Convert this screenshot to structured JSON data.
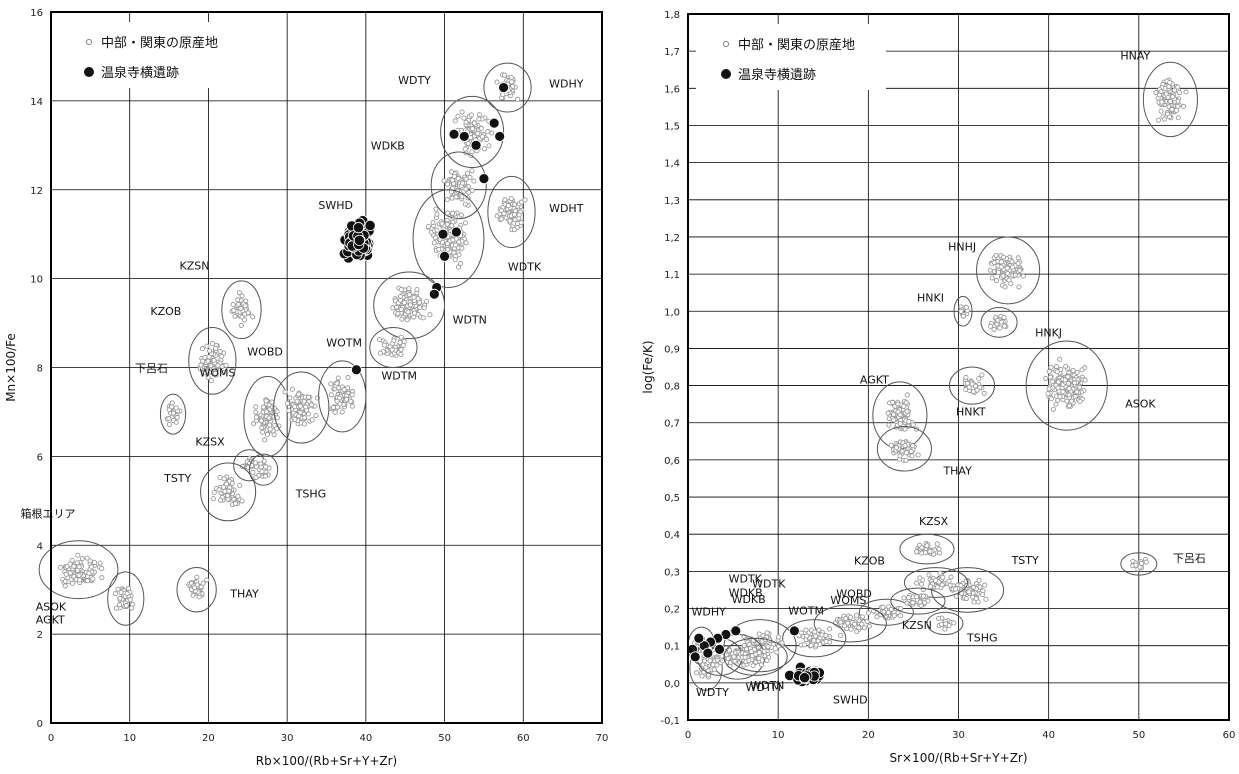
{
  "chart_data": [
    {
      "type": "scatter",
      "xlabel": "Rb×100/(Rb+Sr+Y+Zr)",
      "ylabel": "Mn×100/Fe",
      "xlim": [
        0,
        70
      ],
      "ylim": [
        0,
        16
      ],
      "xticks": [
        "0",
        "10",
        "20",
        "30",
        "40",
        "50",
        "60",
        "70"
      ],
      "yticks": [
        "0",
        "2",
        "4",
        "6",
        "8",
        "10",
        "12",
        "14",
        "16"
      ],
      "grid": true,
      "legend": {
        "position": "top-left",
        "entries": [
          "中部・関東の原産地",
          "温泉寺横遺跡"
        ]
      },
      "source_groups": [
        {
          "name": "WDHY",
          "cx": 58,
          "cy": 14.3,
          "rx": 3.0,
          "ry": 0.55
        },
        {
          "name": "WDTY",
          "cx": 53.5,
          "cy": 13.3,
          "rx": 4.0,
          "ry": 0.8
        },
        {
          "name": "WDKB",
          "cx": 51.8,
          "cy": 12.1,
          "rx": 3.5,
          "ry": 0.75
        },
        {
          "name": "WDHT",
          "cx": 58.5,
          "cy": 11.5,
          "rx": 3.0,
          "ry": 0.8
        },
        {
          "name": "WDTK",
          "cx": 50.5,
          "cy": 10.9,
          "rx": 4.5,
          "ry": 1.1
        },
        {
          "name": "WDTN",
          "cx": 45.5,
          "cy": 9.4,
          "rx": 4.5,
          "ry": 0.75
        },
        {
          "name": "WDTM",
          "cx": 43.5,
          "cy": 8.45,
          "rx": 3.0,
          "ry": 0.45
        },
        {
          "name": "KZSN",
          "cx": 24.2,
          "cy": 9.3,
          "rx": 2.5,
          "ry": 0.65
        },
        {
          "name": "KZOB",
          "cx": 20.5,
          "cy": 8.15,
          "rx": 3.0,
          "ry": 0.75
        },
        {
          "name": "WOMS",
          "cx": 27.5,
          "cy": 6.9,
          "rx": 3.0,
          "ry": 0.9
        },
        {
          "name": "WOBD",
          "cx": 31.8,
          "cy": 7.1,
          "rx": 3.5,
          "ry": 0.8
        },
        {
          "name": "WOTM",
          "cx": 37.0,
          "cy": 7.35,
          "rx": 3.0,
          "ry": 0.8
        },
        {
          "name": "下呂石",
          "cx": 15.5,
          "cy": 6.95,
          "rx": 1.6,
          "ry": 0.45
        },
        {
          "name": "KZSX",
          "cx": 25.2,
          "cy": 5.8,
          "rx": 2.0,
          "ry": 0.35
        },
        {
          "name": "TSHG",
          "cx": 27.0,
          "cy": 5.7,
          "rx": 1.8,
          "ry": 0.35
        },
        {
          "name": "TSTY",
          "cx": 22.5,
          "cy": 5.2,
          "rx": 3.5,
          "ry": 0.65
        },
        {
          "name": "箱根エリア",
          "cx": 3.5,
          "cy": 3.45,
          "rx": 5.0,
          "ry": 0.65
        },
        {
          "name": "ASOK AGKT",
          "cx": 9.5,
          "cy": 2.8,
          "rx": 2.3,
          "ry": 0.6
        },
        {
          "name": "THAY",
          "cx": 18.5,
          "cy": 3.0,
          "rx": 2.5,
          "ry": 0.5
        }
      ],
      "site_points": [
        {
          "x": 57.5,
          "y": 14.3
        },
        {
          "x": 56.3,
          "y": 13.5
        },
        {
          "x": 57.0,
          "y": 13.2
        },
        {
          "x": 51.2,
          "y": 13.25
        },
        {
          "x": 52.5,
          "y": 13.2
        },
        {
          "x": 54.0,
          "y": 13.0
        },
        {
          "x": 55.0,
          "y": 12.25
        },
        {
          "x": 51.5,
          "y": 11.05
        },
        {
          "x": 49.8,
          "y": 11.0
        },
        {
          "x": 50.0,
          "y": 10.5
        },
        {
          "x": 49.0,
          "y": 9.8
        },
        {
          "x": 48.7,
          "y": 9.65
        },
        {
          "x": 38.8,
          "y": 7.95
        }
      ],
      "site_cluster": {
        "name": "SWHD",
        "cx": 38.8,
        "cy": 10.85,
        "rx": 2.8,
        "ry": 0.7
      }
    },
    {
      "type": "scatter",
      "xlabel": "Sr×100/(Rb+Sr+Y+Zr)",
      "ylabel": "log(Fe/K)",
      "xlim": [
        0,
        60
      ],
      "ylim": [
        -0.1,
        1.8
      ],
      "xticks": [
        "0",
        "10",
        "20",
        "30",
        "40",
        "50",
        "60"
      ],
      "yticks": [
        "-0,1",
        "0,0",
        "0,1",
        "0,2",
        "0,3",
        "0,4",
        "0,5",
        "0,6",
        "0,7",
        "0,8",
        "0,9",
        "1,0",
        "1,1",
        "1,2",
        "1,3",
        "1,4",
        "1,5",
        "1,6",
        "1,7",
        "1,8"
      ],
      "grid": true,
      "legend": {
        "position": "top-left",
        "entries": [
          "中部・関東の原産地",
          "温泉寺横遺跡"
        ]
      },
      "source_groups": [
        {
          "name": "HNAY",
          "cx": 53.5,
          "cy": 1.57,
          "rx": 3.0,
          "ry": 0.1
        },
        {
          "name": "HNHJ",
          "cx": 35.5,
          "cy": 1.11,
          "rx": 3.5,
          "ry": 0.09
        },
        {
          "name": "HNKI",
          "cx": 30.5,
          "cy": 1.0,
          "rx": 1.0,
          "ry": 0.04
        },
        {
          "name": "HNKJ",
          "cx": 34.5,
          "cy": 0.97,
          "rx": 2.0,
          "ry": 0.04
        },
        {
          "name": "HNKT",
          "cx": 31.5,
          "cy": 0.8,
          "rx": 2.5,
          "ry": 0.05
        },
        {
          "name": "ASOK",
          "cx": 42.0,
          "cy": 0.8,
          "rx": 4.5,
          "ry": 0.12
        },
        {
          "name": "AGKT",
          "cx": 23.5,
          "cy": 0.72,
          "rx": 3.0,
          "ry": 0.09
        },
        {
          "name": "THAY",
          "cx": 24.0,
          "cy": 0.63,
          "rx": 3.0,
          "ry": 0.06
        },
        {
          "name": "KZSX",
          "cx": 26.5,
          "cy": 0.36,
          "rx": 3.0,
          "ry": 0.04
        },
        {
          "name": "TSTY",
          "cx": 31.0,
          "cy": 0.25,
          "rx": 4.0,
          "ry": 0.06
        },
        {
          "name": "KZOB",
          "cx": 27.5,
          "cy": 0.27,
          "rx": 3.5,
          "ry": 0.04
        },
        {
          "name": "下呂石",
          "cx": 50.0,
          "cy": 0.32,
          "rx": 2.0,
          "ry": 0.03
        },
        {
          "name": "WOMS",
          "cx": 22.0,
          "cy": 0.19,
          "rx": 3.0,
          "ry": 0.035
        },
        {
          "name": "KZSN",
          "cx": 25.5,
          "cy": 0.22,
          "rx": 3.0,
          "ry": 0.035
        },
        {
          "name": "TSHG",
          "cx": 28.5,
          "cy": 0.16,
          "rx": 2.0,
          "ry": 0.03
        },
        {
          "name": "WOBD",
          "cx": 18.0,
          "cy": 0.16,
          "rx": 4.0,
          "ry": 0.05
        },
        {
          "name": "WOTM",
          "cx": 14.0,
          "cy": 0.12,
          "rx": 3.5,
          "ry": 0.05
        },
        {
          "name": "WDTK",
          "cx": 8.0,
          "cy": 0.1,
          "rx": 4.0,
          "ry": 0.07
        },
        {
          "name": "WDKB",
          "cx": 5.5,
          "cy": 0.07,
          "rx": 3.0,
          "ry": 0.06
        },
        {
          "name": "WDHY",
          "cx": 1.5,
          "cy": 0.1,
          "rx": 1.5,
          "ry": 0.05
        },
        {
          "name": "WDTY",
          "cx": 2.0,
          "cy": 0.04,
          "rx": 1.8,
          "ry": 0.06
        },
        {
          "name": "WDTN",
          "cx": 3.5,
          "cy": 0.07,
          "rx": 2.5,
          "ry": 0.05
        },
        {
          "name": "WDTM",
          "cx": 7.5,
          "cy": 0.07,
          "rx": 3.5,
          "ry": 0.05
        }
      ],
      "site_points": [
        {
          "x": 5.3,
          "y": 0.14
        },
        {
          "x": 4.2,
          "y": 0.13
        },
        {
          "x": 3.3,
          "y": 0.12
        },
        {
          "x": 2.5,
          "y": 0.11
        },
        {
          "x": 1.8,
          "y": 0.1
        },
        {
          "x": 0.5,
          "y": 0.09
        },
        {
          "x": 0.8,
          "y": 0.07
        },
        {
          "x": 2.2,
          "y": 0.08
        },
        {
          "x": 3.5,
          "y": 0.09
        },
        {
          "x": 1.2,
          "y": 0.12
        },
        {
          "x": 11.8,
          "y": 0.14
        }
      ],
      "site_cluster": {
        "name": "SWHD",
        "cx": 13.2,
        "cy": 0.02,
        "rx": 3.2,
        "ry": 0.03
      },
      "extra_labels": [
        {
          "text": "WDTK"
        },
        {
          "text": "WDKB"
        }
      ]
    }
  ]
}
